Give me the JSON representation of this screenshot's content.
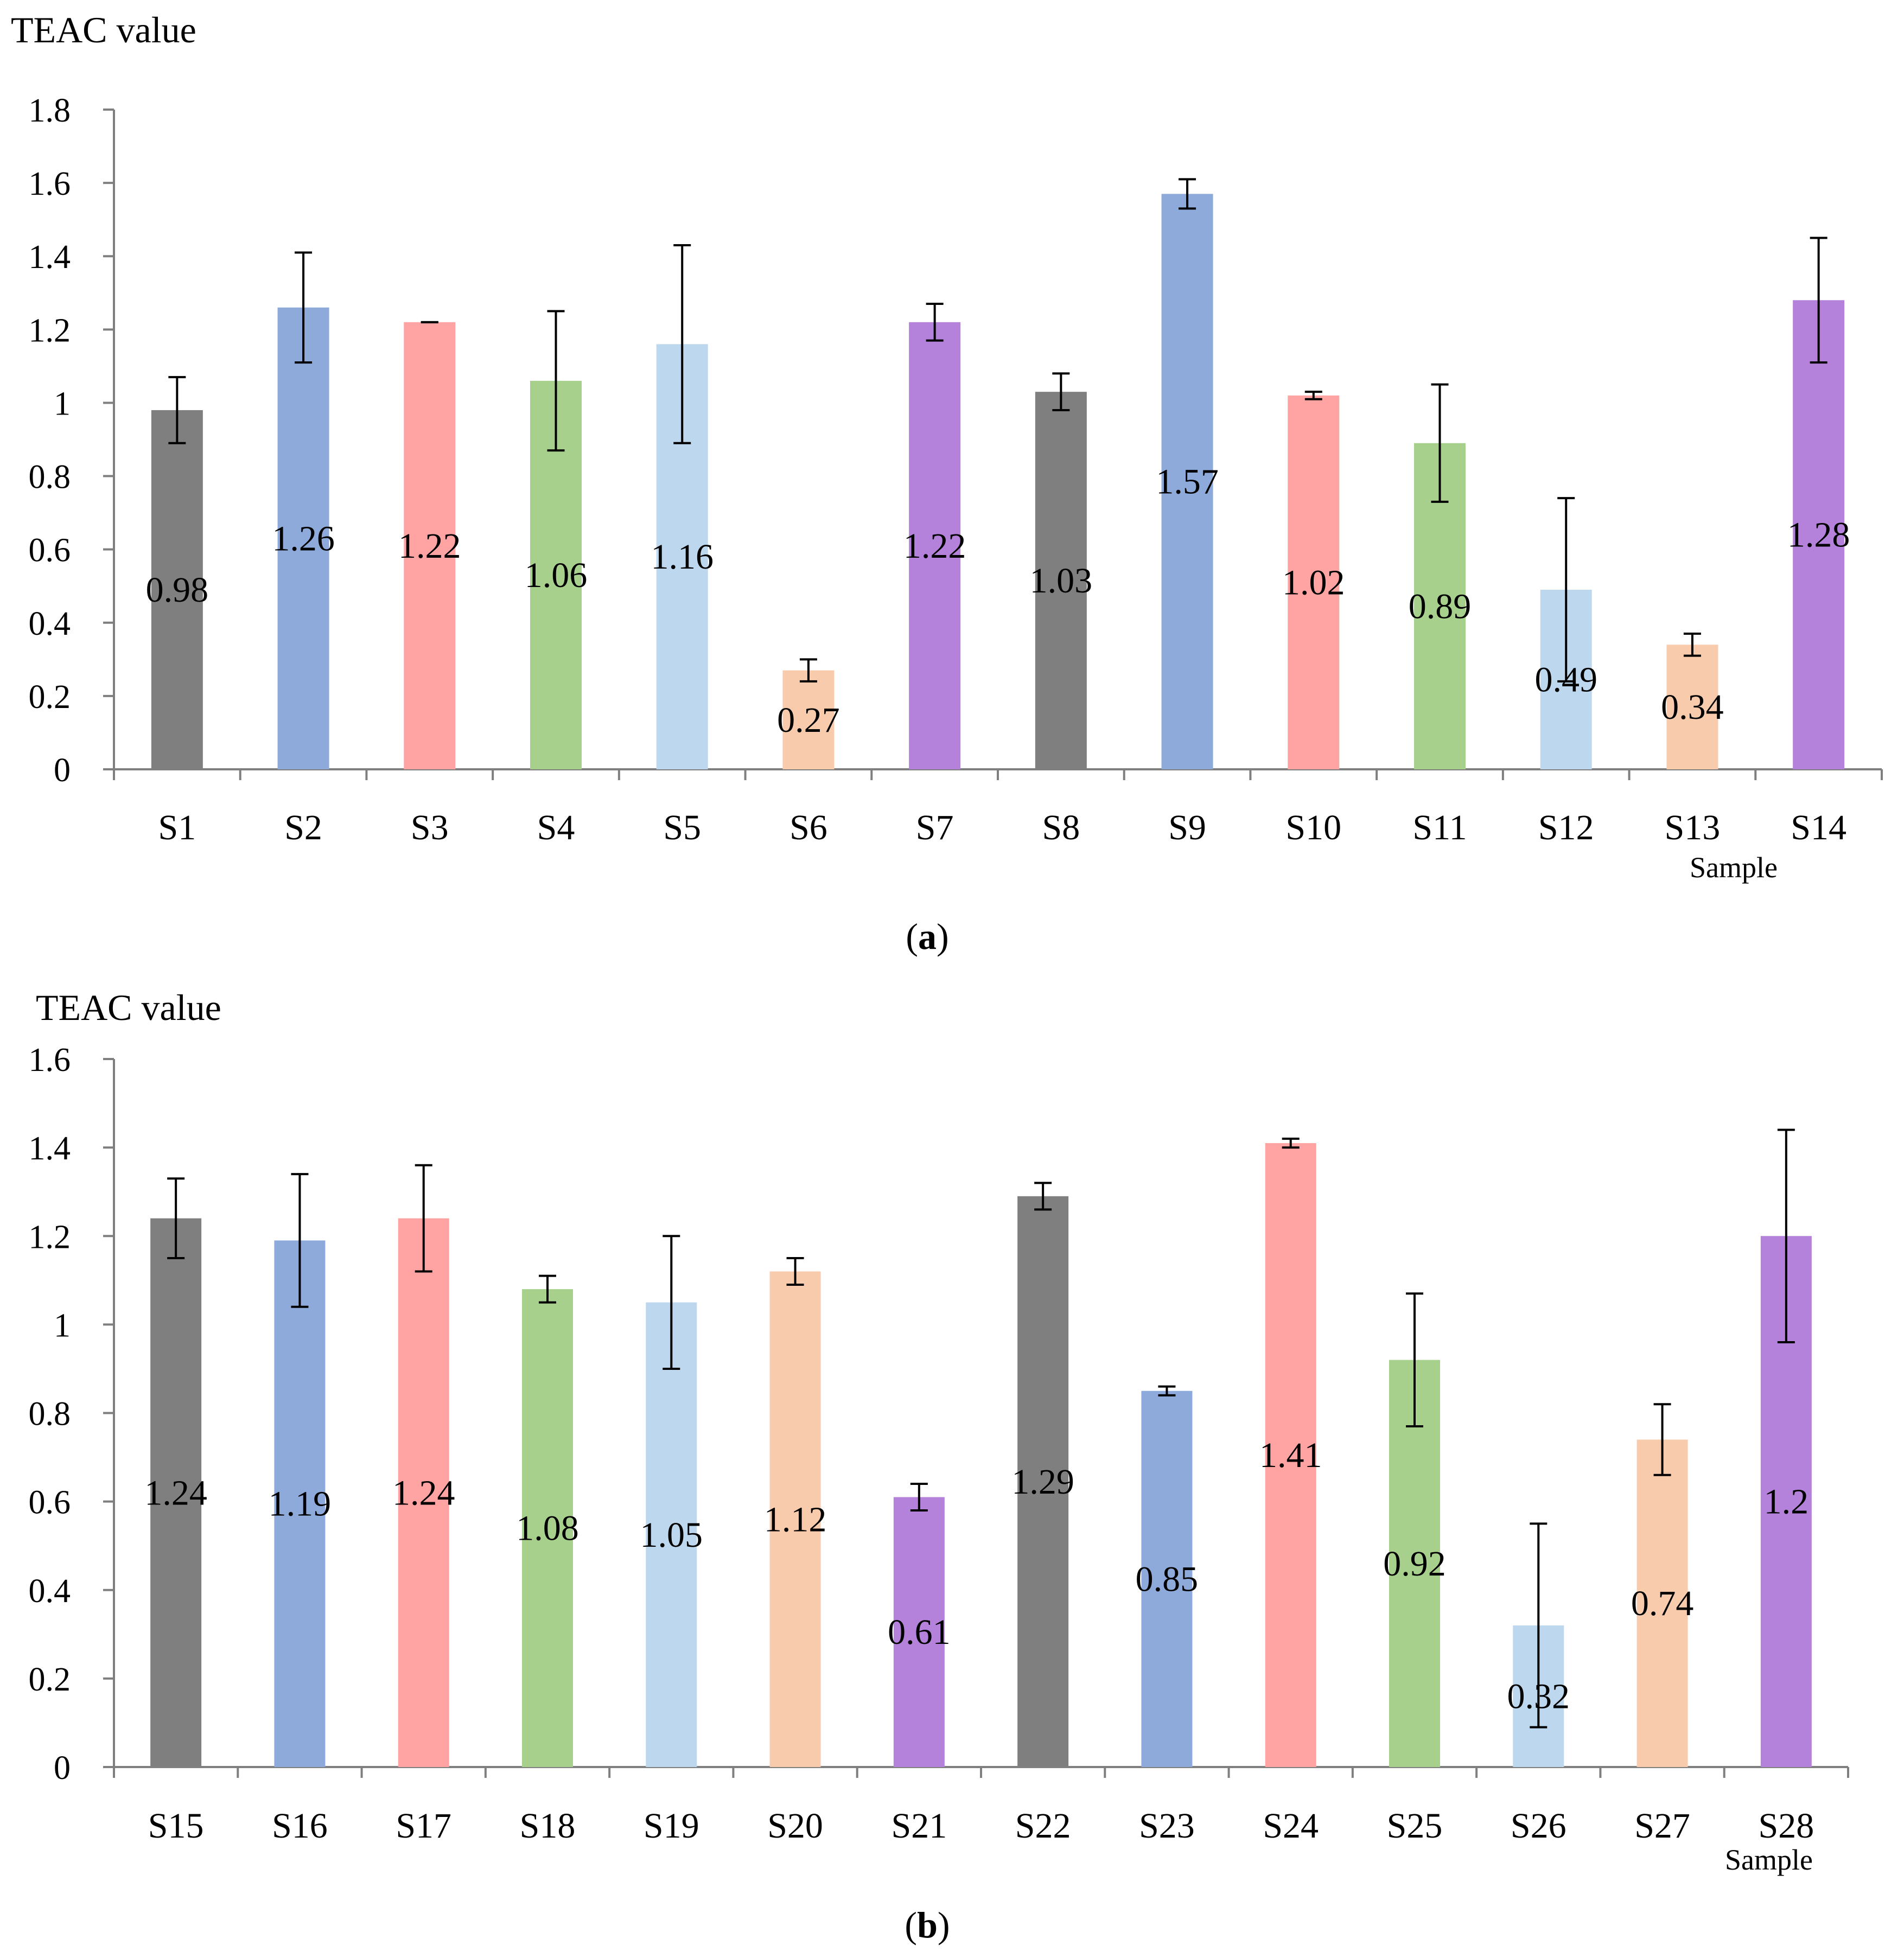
{
  "chart_data": [
    {
      "type": "bar",
      "panel_label": "a",
      "title": "",
      "ylabel": "TEAC value",
      "xlabel": "Sample",
      "ylim": [
        0,
        1.8
      ],
      "yticks": [
        "0",
        "0.2",
        "0.4",
        "0.6",
        "0.8",
        "1",
        "1.2",
        "1.4",
        "1.6",
        "1.8"
      ],
      "categories": [
        "S1",
        "S2",
        "S3",
        "S4",
        "S5",
        "S6",
        "S7",
        "S8",
        "S9",
        "S10",
        "S11",
        "S12",
        "S13",
        "S14"
      ],
      "values": [
        0.98,
        1.26,
        1.22,
        1.06,
        1.16,
        0.27,
        1.22,
        1.03,
        1.57,
        1.02,
        0.89,
        0.49,
        0.34,
        1.28
      ],
      "labels": [
        "0.98",
        "1.26",
        "1.22",
        "1.06",
        "1.16",
        "0.27",
        "1.22",
        "1.03",
        "1.57",
        "1.02",
        "0.89",
        "0.49",
        "0.34",
        "1.28"
      ],
      "errors": [
        0.09,
        0.15,
        0.0,
        0.19,
        0.27,
        0.03,
        0.05,
        0.05,
        0.04,
        0.01,
        0.16,
        0.25,
        0.03,
        0.17
      ],
      "colors": [
        "#7f7f7f",
        "#8eaadb",
        "#ffa3a3",
        "#a8d08d",
        "#bdd7ee",
        "#f8cbad",
        "#b482da",
        "#7f7f7f",
        "#8eaadb",
        "#ffa3a3",
        "#a8d08d",
        "#bdd7ee",
        "#f8cbad",
        "#b482da"
      ],
      "legend": "none",
      "grid": false
    },
    {
      "type": "bar",
      "panel_label": "b",
      "title": "",
      "ylabel": "TEAC value",
      "xlabel": "Sample",
      "ylim": [
        0,
        1.6
      ],
      "yticks": [
        "0",
        "0.2",
        "0.4",
        "0.6",
        "0.8",
        "1",
        "1.2",
        "1.4",
        "1.6"
      ],
      "categories": [
        "S15",
        "S16",
        "S17",
        "S18",
        "S19",
        "S20",
        "S21",
        "S22",
        "S23",
        "S24",
        "S25",
        "S26",
        "S27",
        "S28"
      ],
      "values": [
        1.24,
        1.19,
        1.24,
        1.08,
        1.05,
        1.12,
        0.61,
        1.29,
        0.85,
        1.41,
        0.92,
        0.32,
        0.74,
        1.2
      ],
      "labels": [
        "1.24",
        "1.19",
        "1.24",
        "1.08",
        "1.05",
        "1.12",
        "0.61",
        "1.29",
        "0.85",
        "1.41",
        "0.92",
        "0.32",
        "0.74",
        "1.2"
      ],
      "errors": [
        0.09,
        0.15,
        0.12,
        0.03,
        0.15,
        0.03,
        0.03,
        0.03,
        0.01,
        0.01,
        0.15,
        0.23,
        0.08,
        0.24
      ],
      "colors": [
        "#7f7f7f",
        "#8eaadb",
        "#ffa3a3",
        "#a8d08d",
        "#bdd7ee",
        "#f8cbad",
        "#b482da",
        "#7f7f7f",
        "#8eaadb",
        "#ffa3a3",
        "#a8d08d",
        "#bdd7ee",
        "#f8cbad",
        "#b482da"
      ],
      "legend": "none",
      "grid": false
    }
  ]
}
